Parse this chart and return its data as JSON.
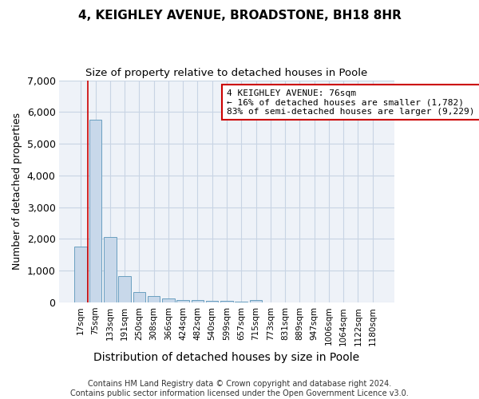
{
  "title": "4, KEIGHLEY AVENUE, BROADSTONE, BH18 8HR",
  "subtitle": "Size of property relative to detached houses in Poole",
  "xlabel": "Distribution of detached houses by size in Poole",
  "ylabel": "Number of detached properties",
  "categories": [
    "17sqm",
    "75sqm",
    "133sqm",
    "191sqm",
    "250sqm",
    "308sqm",
    "366sqm",
    "424sqm",
    "482sqm",
    "540sqm",
    "599sqm",
    "657sqm",
    "715sqm",
    "773sqm",
    "831sqm",
    "889sqm",
    "947sqm",
    "1006sqm",
    "1064sqm",
    "1122sqm",
    "1180sqm"
  ],
  "values": [
    1750,
    5750,
    2050,
    820,
    340,
    200,
    130,
    85,
    70,
    55,
    45,
    35,
    75,
    5,
    5,
    5,
    5,
    5,
    5,
    5,
    5
  ],
  "bar_color": "#c8d8ea",
  "bar_edge_color": "#6a9fc0",
  "red_line_x": 1,
  "annotation_text": "4 KEIGHLEY AVENUE: 76sqm\n← 16% of detached houses are smaller (1,782)\n83% of semi-detached houses are larger (9,229) →",
  "annotation_box_color": "#ffffff",
  "annotation_box_edge": "#cc0000",
  "footer_line1": "Contains HM Land Registry data © Crown copyright and database right 2024.",
  "footer_line2": "Contains public sector information licensed under the Open Government Licence v3.0.",
  "ylim": [
    0,
    7000
  ],
  "background_color": "#ffffff",
  "plot_bg_color": "#eef2f8",
  "grid_color": "#c8d4e4",
  "title_fontsize": 11,
  "subtitle_fontsize": 9.5,
  "tick_fontsize": 7.5,
  "ylabel_fontsize": 9,
  "xlabel_fontsize": 10,
  "footer_fontsize": 7
}
